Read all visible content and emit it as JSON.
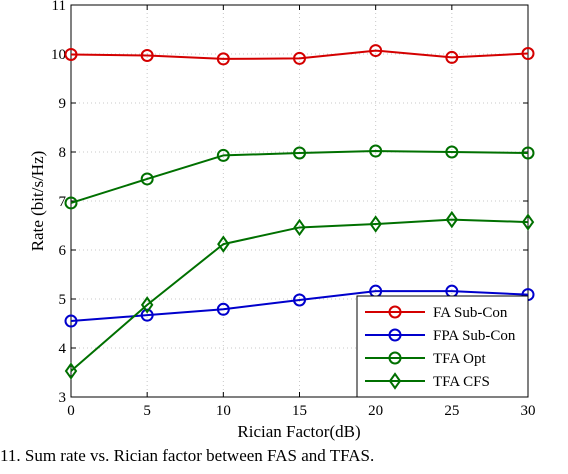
{
  "chart_data": {
    "type": "line",
    "title": "",
    "xlabel": "Rician Factor(dB)",
    "ylabel": "Rate (bit/s/Hz)",
    "x": [
      0,
      5,
      10,
      15,
      20,
      25,
      30
    ],
    "xlim": [
      0,
      30
    ],
    "ylim": [
      3,
      11
    ],
    "xticks": [
      0,
      5,
      10,
      15,
      20,
      25,
      30
    ],
    "yticks": [
      3,
      4,
      5,
      6,
      7,
      8,
      9,
      10,
      11
    ],
    "grid": true,
    "legend_position": "bottom-right",
    "series": [
      {
        "name": "FA Sub-Con",
        "color": "#d40000",
        "marker": "circle",
        "values": [
          9.99,
          9.97,
          9.9,
          9.91,
          10.07,
          9.93,
          10.01
        ]
      },
      {
        "name": "FPA Sub-Con",
        "color": "#0000cc",
        "marker": "circle",
        "values": [
          4.55,
          4.67,
          4.79,
          4.98,
          5.16,
          5.16,
          5.09
        ]
      },
      {
        "name": "TFA Opt",
        "color": "#007000",
        "marker": "circle",
        "values": [
          6.96,
          7.45,
          7.93,
          7.98,
          8.02,
          8.0,
          7.98
        ]
      },
      {
        "name": "TFA CFS",
        "color": "#007000",
        "marker": "diamond",
        "values": [
          3.53,
          4.88,
          6.12,
          6.46,
          6.53,
          6.62,
          6.57
        ]
      }
    ]
  },
  "caption": "11. Sum rate vs. Rician factor between FAS and TFAS."
}
